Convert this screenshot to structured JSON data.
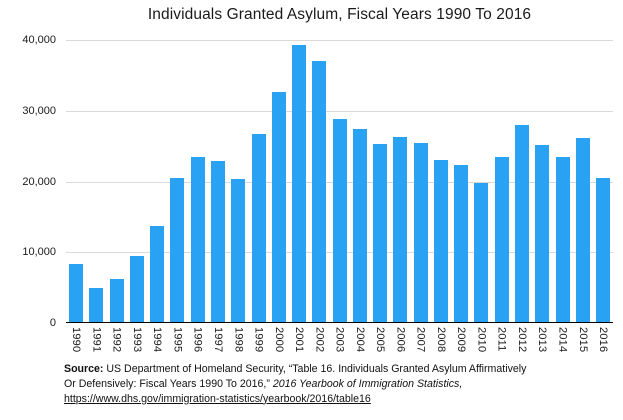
{
  "chart_data": {
    "type": "bar",
    "title": "Individuals Granted Asylum, Fiscal Years 1990 To 2016",
    "categories": [
      "1990",
      "1991",
      "1992",
      "1993",
      "1994",
      "1995",
      "1996",
      "1997",
      "1998",
      "1999",
      "2000",
      "2001",
      "2002",
      "2003",
      "2004",
      "2005",
      "2006",
      "2007",
      "2008",
      "2009",
      "2010",
      "2011",
      "2012",
      "2013",
      "2014",
      "2015",
      "2016"
    ],
    "values": [
      8400,
      5000,
      6200,
      9500,
      13700,
      20500,
      23500,
      22900,
      20400,
      26700,
      32600,
      39300,
      37100,
      28800,
      27400,
      25300,
      26300,
      25400,
      23000,
      22300,
      19800,
      23500,
      28000,
      25100,
      23400,
      26100,
      20500
    ],
    "xlabel": "",
    "ylabel": "",
    "ylim": [
      0,
      40000
    ],
    "ytick_labels_top_to_bottom": [
      "40,000",
      "30,000",
      "20,000",
      "10,000",
      "0"
    ],
    "grid": true,
    "legend_position": "none",
    "bar_color": "#2aa2f4",
    "gridline_color": "#d9d9d9",
    "axis_line_color": "#000000"
  },
  "footer": {
    "source_label": "Source:",
    "line1_rest": " US Department of Homeland Security, “Table 16. Individuals Granted Asylum Affirmatively",
    "line2": "Or Defensively: Fiscal Years 1990 To 2016,”  ",
    "line2_italic": "2016 Yearbook of Immigration Statistics,",
    "link": "https://www.dhs.gov/immigration-statistics/yearbook/2016/table16"
  }
}
